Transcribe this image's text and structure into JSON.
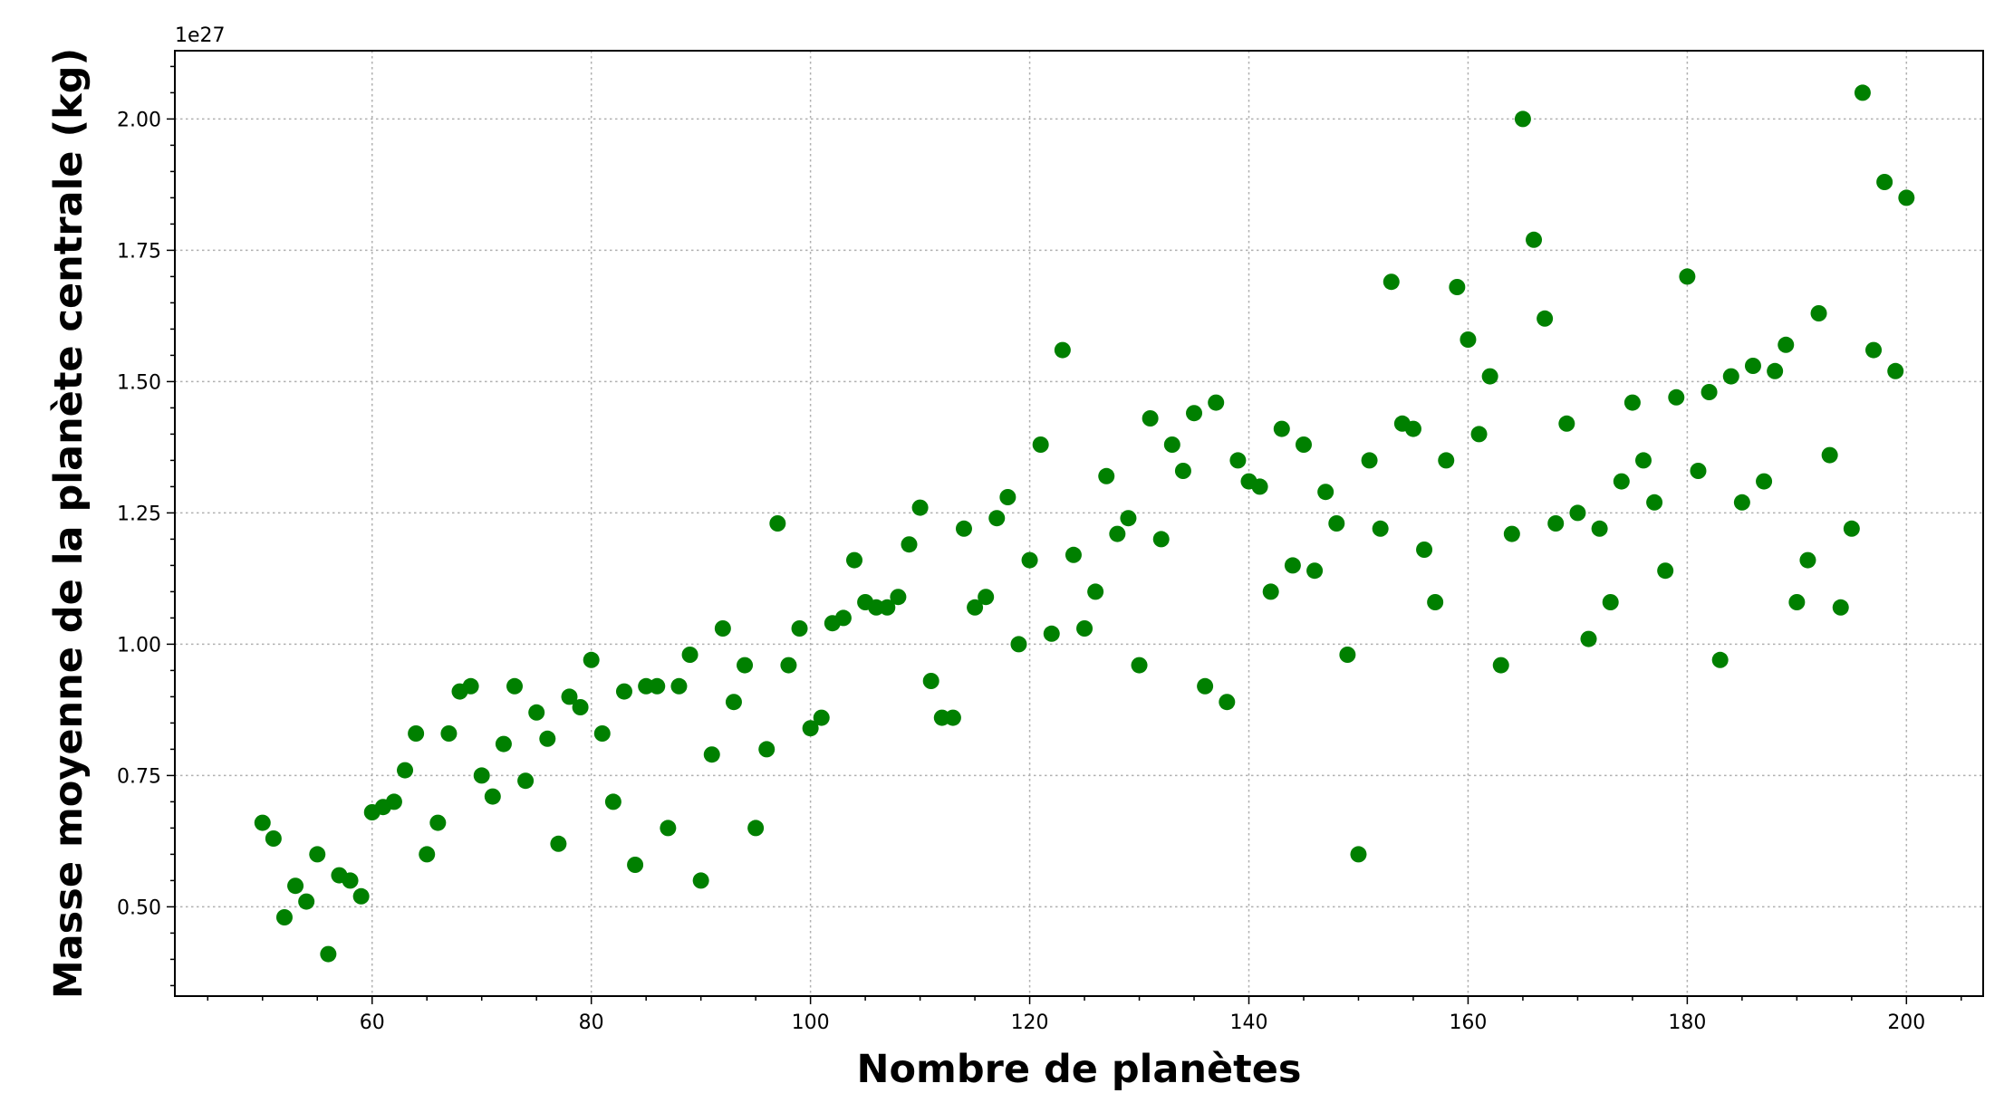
{
  "chart_data": {
    "type": "scatter",
    "xlabel": "Nombre de planètes",
    "ylabel": "Masse moyenne de la planète centrale (kg)",
    "y_offset_text": "1e27",
    "y_scale": 1e+27,
    "xlim": [
      42,
      207
    ],
    "ylim": [
      0.33,
      2.13
    ],
    "x_ticks": [
      60,
      80,
      100,
      120,
      140,
      160,
      180,
      200
    ],
    "x_tick_labels": [
      "60",
      "80",
      "100",
      "120",
      "140",
      "160",
      "180",
      "200"
    ],
    "x_minor_step": 5,
    "y_ticks": [
      0.5,
      0.75,
      1.0,
      1.25,
      1.5,
      1.75,
      2.0
    ],
    "y_tick_labels": [
      "0.50",
      "0.75",
      "1.00",
      "1.25",
      "1.50",
      "1.75",
      "2.00"
    ],
    "y_minor_step": 0.05,
    "grid": true,
    "marker_color": "#008000",
    "x": [
      50,
      51,
      52,
      53,
      54,
      55,
      56,
      57,
      58,
      59,
      60,
      61,
      62,
      63,
      64,
      65,
      66,
      67,
      68,
      69,
      70,
      71,
      72,
      73,
      74,
      75,
      76,
      77,
      78,
      79,
      80,
      81,
      82,
      83,
      84,
      85,
      86,
      87,
      88,
      89,
      90,
      91,
      92,
      93,
      94,
      95,
      96,
      97,
      98,
      99,
      100,
      101,
      102,
      103,
      104,
      105,
      106,
      107,
      108,
      109,
      110,
      111,
      112,
      113,
      114,
      115,
      116,
      117,
      118,
      119,
      120,
      121,
      122,
      123,
      124,
      125,
      126,
      127,
      128,
      129,
      130,
      131,
      132,
      133,
      134,
      135,
      136,
      137,
      138,
      139,
      140,
      141,
      142,
      143,
      144,
      145,
      146,
      147,
      148,
      149,
      150,
      151,
      152,
      153,
      154,
      155,
      156,
      157,
      158,
      159,
      160,
      161,
      162,
      163,
      164,
      165,
      166,
      167,
      168,
      169,
      170,
      171,
      172,
      173,
      174,
      175,
      176,
      177,
      178,
      179,
      180,
      181,
      182,
      183,
      184,
      185,
      186,
      187,
      188,
      189,
      190,
      191,
      192,
      193,
      194,
      195,
      196,
      197,
      198,
      199,
      200
    ],
    "y": [
      0.66,
      0.63,
      0.48,
      0.54,
      0.51,
      0.6,
      0.41,
      0.56,
      0.55,
      0.52,
      0.68,
      0.69,
      0.7,
      0.76,
      0.83,
      0.6,
      0.66,
      0.83,
      0.91,
      0.92,
      0.75,
      0.71,
      0.81,
      0.92,
      0.74,
      0.87,
      0.82,
      0.62,
      0.9,
      0.88,
      0.97,
      0.83,
      0.7,
      0.91,
      0.58,
      0.92,
      0.92,
      0.65,
      0.92,
      0.98,
      0.55,
      0.79,
      1.03,
      0.89,
      0.96,
      0.65,
      0.8,
      1.23,
      0.96,
      1.03,
      0.84,
      0.86,
      1.04,
      1.05,
      1.16,
      1.08,
      1.07,
      1.07,
      1.09,
      1.19,
      1.26,
      0.93,
      0.86,
      0.86,
      1.22,
      1.07,
      1.09,
      1.24,
      1.28,
      1.0,
      1.16,
      1.38,
      1.02,
      1.56,
      1.17,
      1.03,
      1.1,
      1.32,
      1.21,
      1.24,
      0.96,
      1.43,
      1.2,
      1.38,
      1.33,
      1.44,
      0.92,
      1.46,
      0.89,
      1.35,
      1.31,
      1.3,
      1.1,
      1.41,
      1.15,
      1.38,
      1.14,
      1.29,
      1.23,
      0.98,
      0.6,
      1.35,
      1.22,
      1.69,
      1.42,
      1.41,
      1.18,
      1.08,
      1.35,
      1.68,
      1.58,
      1.4,
      1.51,
      0.96,
      1.21,
      2.0,
      1.77,
      1.62,
      1.23,
      1.42,
      1.25,
      1.01,
      1.22,
      1.08,
      1.31,
      1.46,
      1.35,
      1.27,
      1.14,
      1.47,
      1.7,
      1.33,
      1.48,
      0.97,
      1.51,
      1.27,
      1.53,
      1.31,
      1.52,
      1.57,
      1.08,
      1.16,
      1.63,
      1.36,
      1.07,
      1.22,
      2.05,
      1.56,
      1.88,
      1.52,
      1.85
    ]
  }
}
